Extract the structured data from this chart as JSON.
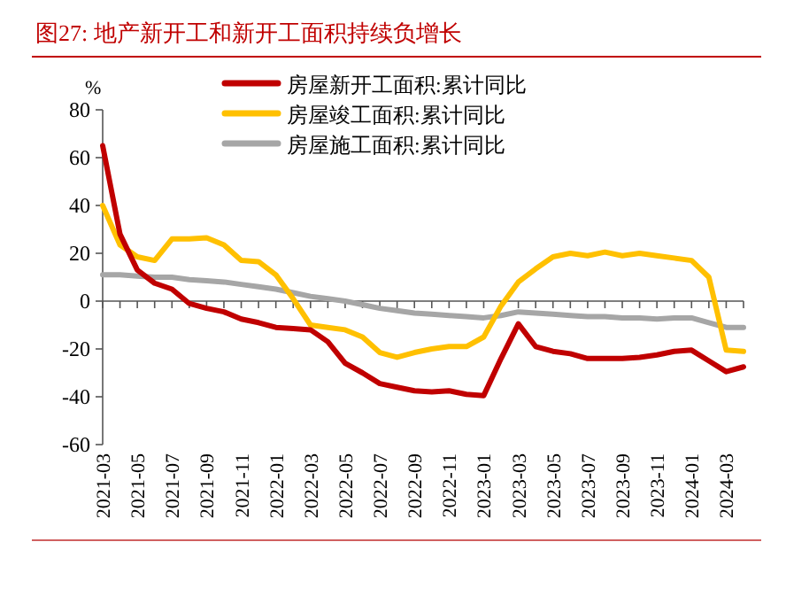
{
  "chart_data": {
    "type": "line",
    "title": "图27:  地产新开工和新开工面积持续负增长",
    "ylabel": "%",
    "categories": [
      "2021-03",
      null,
      "2021-05",
      null,
      "2021-07",
      null,
      "2021-09",
      null,
      "2021-11",
      null,
      "2022-01",
      null,
      "2022-03",
      null,
      "2022-05",
      null,
      "2022-07",
      null,
      "2022-09",
      null,
      "2022-11",
      null,
      "2023-01",
      null,
      "2023-03",
      null,
      "2023-05",
      null,
      "2023-07",
      null,
      "2023-09",
      null,
      "2023-11",
      null,
      "2024-01",
      null,
      "2024-03",
      null
    ],
    "series": [
      {
        "name": "房屋新开工面积:累计同比",
        "color": "#c00000",
        "values": [
          65,
          28,
          13,
          7.5,
          5,
          -1,
          -3,
          -4.5,
          -7.5,
          -9,
          -11,
          -11.5,
          -12,
          -17,
          -26,
          -30,
          -34.5,
          -36,
          -37.5,
          -38,
          -37.5,
          -39,
          -39.5,
          -24,
          -9.5,
          -19,
          -21,
          -22,
          -24,
          -24,
          -24,
          -23.5,
          -22.5,
          -21,
          -20.5,
          -25,
          -29.5,
          -27.5
        ]
      },
      {
        "name": "房屋竣工面积:累计同比",
        "color": "#ffc000",
        "values": [
          40,
          23.5,
          18.5,
          17,
          26,
          26,
          26.5,
          23.5,
          17,
          16.5,
          11,
          1,
          -10,
          -11,
          -12,
          -15,
          -21.5,
          -23.5,
          -21.5,
          -20,
          -19,
          -19,
          -15,
          -2,
          8,
          13.5,
          18.5,
          20,
          19,
          20.5,
          19,
          20,
          19,
          18,
          17,
          10,
          -20.5,
          -21
        ]
      },
      {
        "name": "房屋施工面积:累计同比",
        "color": "#a6a6a6",
        "values": [
          11,
          11,
          10.5,
          10,
          10,
          9,
          8.5,
          8,
          7,
          6,
          5,
          3.5,
          2,
          1,
          0,
          -1.5,
          -3,
          -4,
          -5,
          -5.5,
          -6,
          -6.5,
          -7,
          -6,
          -4.5,
          -5,
          -5.5,
          -6,
          -6.5,
          -6.5,
          -7,
          -7,
          -7.5,
          -7,
          -7,
          -9,
          -11,
          -11
        ]
      }
    ],
    "ylim": [
      -60,
      80
    ],
    "yticks": [
      -60,
      -40,
      -20,
      0,
      20,
      40,
      60,
      80
    ],
    "legend": "top"
  }
}
